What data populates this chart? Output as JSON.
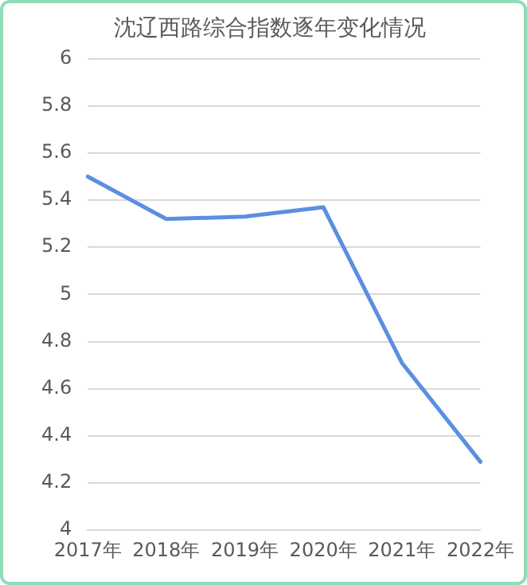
{
  "chart_data": {
    "type": "line",
    "title": "沈辽西路综合指数逐年变化情况",
    "categories": [
      "2017年",
      "2018年",
      "2019年",
      "2020年",
      "2021年",
      "2022年"
    ],
    "series": [
      {
        "color": "#5b8fe0",
        "values": [
          5.5,
          5.32,
          5.33,
          5.37,
          4.71,
          4.29
        ]
      }
    ],
    "ylim": [
      4,
      6
    ],
    "yticks": [
      {
        "value": 4,
        "label": "4"
      },
      {
        "value": 4.2,
        "label": "4.2"
      },
      {
        "value": 4.4,
        "label": "4.4"
      },
      {
        "value": 4.6,
        "label": "4.6"
      },
      {
        "value": 4.8,
        "label": "4.8"
      },
      {
        "value": 5,
        "label": "5"
      },
      {
        "value": 5.2,
        "label": "5.2"
      },
      {
        "value": 5.4,
        "label": "5.4"
      },
      {
        "value": 5.6,
        "label": "5.6"
      },
      {
        "value": 5.8,
        "label": "5.8"
      },
      {
        "value": 6,
        "label": "6"
      }
    ],
    "grid": "y",
    "legend": false,
    "marker": "none",
    "line_style": "solid"
  }
}
